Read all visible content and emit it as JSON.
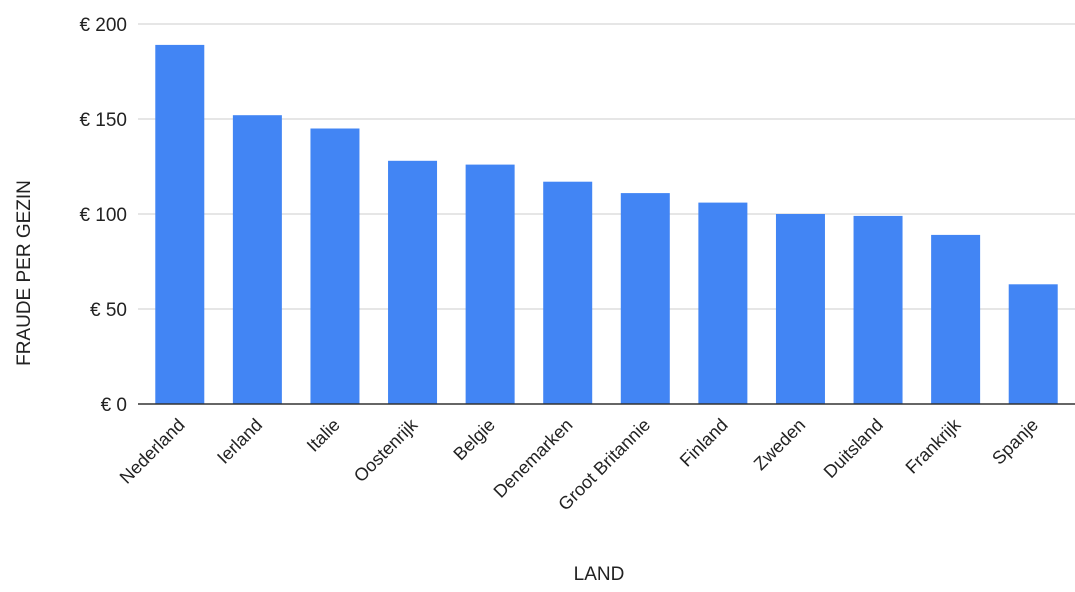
{
  "chart_data": {
    "type": "bar",
    "title": "",
    "xlabel": "LAND",
    "ylabel": "FRAUDE PER GEZIN",
    "categories": [
      "Nederland",
      "Ierland",
      "Italie",
      "Oostenrijk",
      "Belgie",
      "Denemarken",
      "Groot Britannie",
      "Finland",
      "Zweden",
      "Duitsland",
      "Frankrijk",
      "Spanje"
    ],
    "values": [
      189,
      152,
      145,
      128,
      126,
      117,
      111,
      106,
      100,
      99,
      89,
      63
    ],
    "ylim": [
      0,
      200
    ],
    "yticks": [
      0,
      50,
      100,
      150,
      200
    ],
    "ytick_labels": [
      "€ 0",
      "€ 50",
      "€ 100",
      "€ 150",
      "€ 200"
    ],
    "grid": true,
    "legend": "none",
    "bar_color": "#4285f4",
    "grid_color": "#cccccc",
    "axis_color": "#333333"
  }
}
